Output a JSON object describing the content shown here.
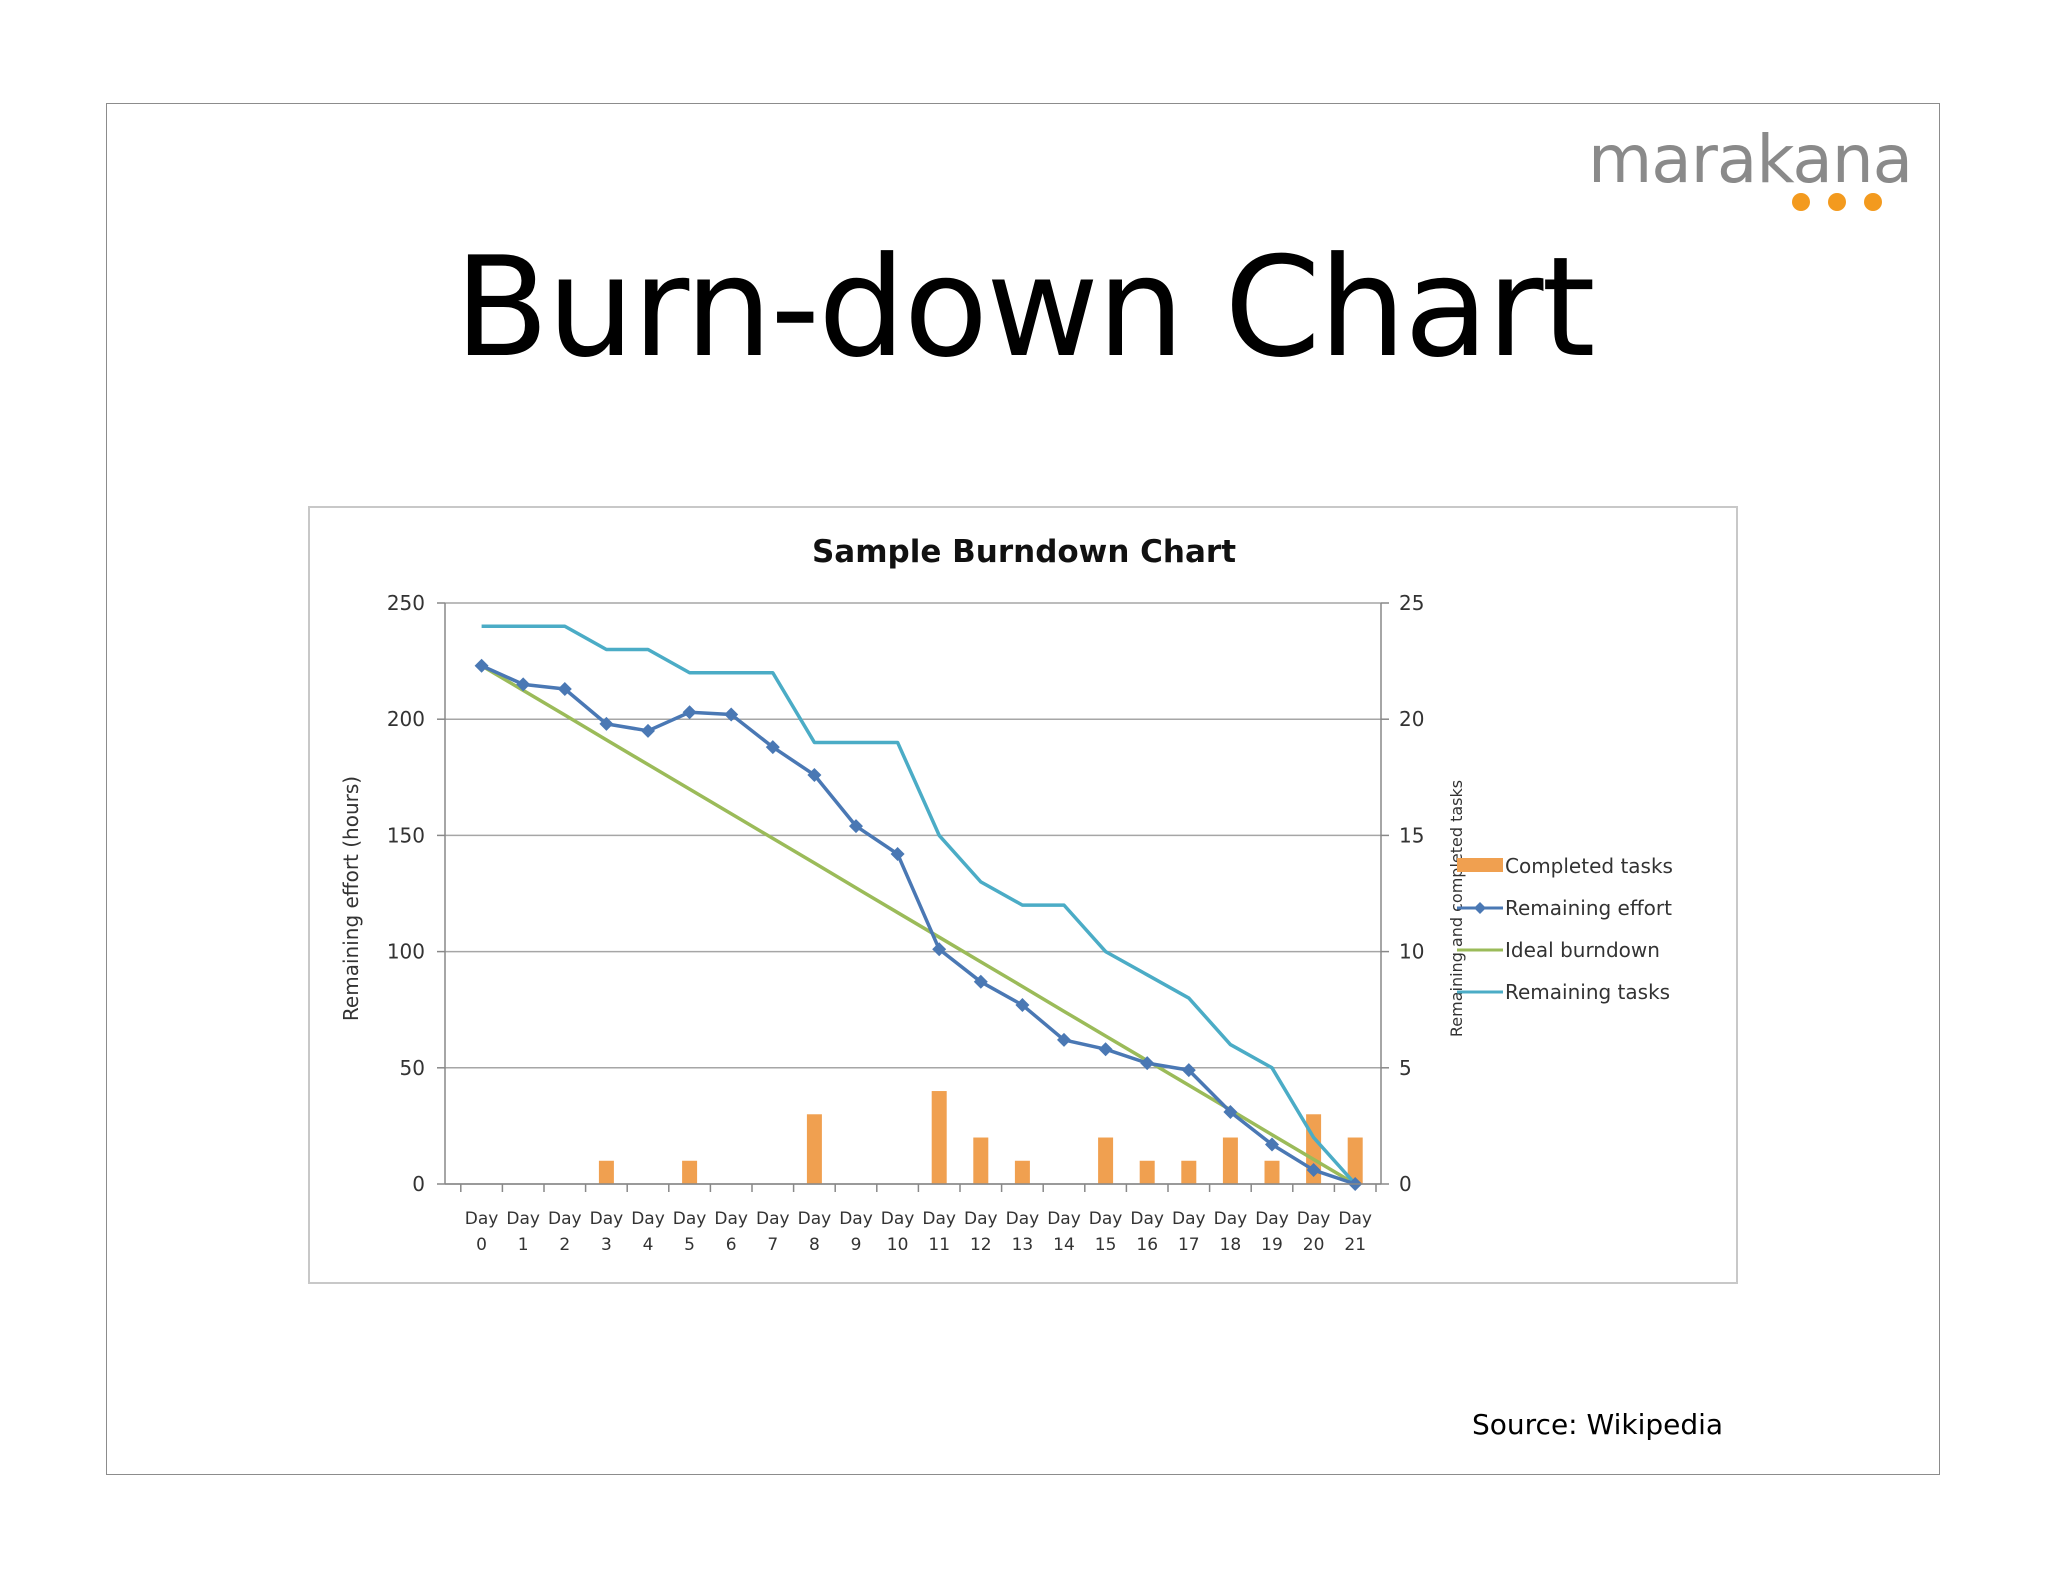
{
  "logo": {
    "text": "marakana",
    "dot_color": "#f39a1e"
  },
  "slide": {
    "title": "Burn-down Chart",
    "source": "Source:  Wikipedia"
  },
  "colors": {
    "completed_tasks": "#f0a050",
    "remaining_effort": "#4a78b4",
    "ideal_burndown": "#9bbb59",
    "remaining_tasks": "#4bacc6",
    "grid": "#a6a6a6"
  },
  "chart_data": {
    "type": "line",
    "title": "Sample Burndown Chart",
    "categories": [
      "Day 0",
      "Day 1",
      "Day 2",
      "Day 3",
      "Day 4",
      "Day 5",
      "Day 6",
      "Day 7",
      "Day 8",
      "Day 9",
      "Day 10",
      "Day 11",
      "Day 12",
      "Day 13",
      "Day 14",
      "Day 15",
      "Day 16",
      "Day 17",
      "Day 18",
      "Day 19",
      "Day 20",
      "Day 21"
    ],
    "ylabel": "Remaining effort (hours)",
    "y2label": "Remaining and completed tasks",
    "ylim": [
      0,
      250
    ],
    "y2lim": [
      0,
      25
    ],
    "yticks": [
      0,
      50,
      100,
      150,
      200,
      250
    ],
    "y2ticks": [
      0,
      5,
      10,
      15,
      20,
      25
    ],
    "grid": true,
    "legend_position": "right",
    "series": [
      {
        "name": "Completed tasks",
        "type": "bar",
        "axis": "right",
        "values": [
          0,
          0,
          0,
          1,
          0,
          1,
          0,
          0,
          3,
          0,
          0,
          4,
          2,
          1,
          0,
          2,
          1,
          1,
          2,
          1,
          3,
          2
        ]
      },
      {
        "name": "Remaining effort",
        "type": "line",
        "axis": "left",
        "marker": "diamond",
        "values": [
          223,
          215,
          213,
          198,
          195,
          203,
          202,
          188,
          176,
          154,
          142,
          101,
          87,
          77,
          62,
          58,
          52,
          49,
          31,
          17,
          6,
          0
        ]
      },
      {
        "name": "Ideal burndown",
        "type": "line",
        "axis": "left",
        "values": [
          223,
          212.4,
          201.8,
          191.1,
          180.5,
          169.9,
          159.3,
          148.7,
          138.1,
          127.4,
          116.8,
          106.2,
          95.6,
          85,
          74.3,
          63.7,
          53.1,
          42.5,
          31.9,
          21.2,
          10.6,
          0
        ]
      },
      {
        "name": "Remaining tasks",
        "type": "line",
        "axis": "right",
        "values": [
          24,
          24,
          24,
          23,
          23,
          22,
          22,
          22,
          19,
          19,
          19,
          15,
          13,
          12,
          12,
          10,
          9,
          8,
          6,
          5,
          2,
          0
        ]
      }
    ]
  }
}
